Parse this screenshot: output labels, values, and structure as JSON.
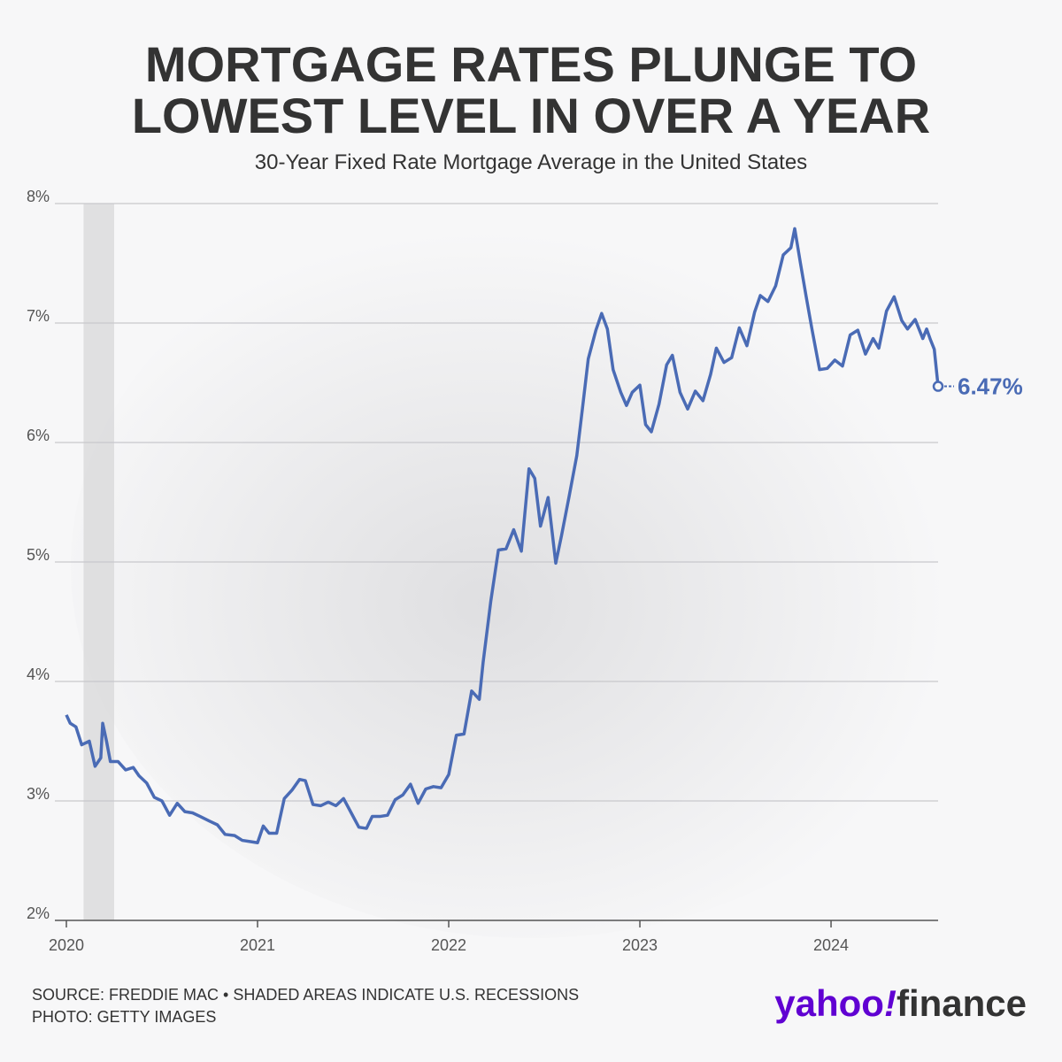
{
  "chart_data": {
    "type": "line",
    "title": [
      "MORTGAGE RATES PLUNGE TO",
      "LOWEST LEVEL IN OVER A YEAR"
    ],
    "subtitle": "30-Year Fixed Rate Mortgage Average in the United States",
    "x": [
      2020.0,
      2020.02,
      2020.05,
      2020.08,
      2020.12,
      2020.15,
      2020.18,
      2020.19,
      2020.21,
      2020.23,
      2020.27,
      2020.31,
      2020.35,
      2020.38,
      2020.42,
      2020.46,
      2020.5,
      2020.54,
      2020.58,
      2020.62,
      2020.66,
      2020.7,
      2020.75,
      2020.79,
      2020.83,
      2020.88,
      2020.92,
      2020.96,
      2021.0,
      2021.03,
      2021.06,
      2021.1,
      2021.14,
      2021.18,
      2021.22,
      2021.25,
      2021.29,
      2021.33,
      2021.37,
      2021.41,
      2021.45,
      2021.49,
      2021.53,
      2021.57,
      2021.6,
      2021.64,
      2021.68,
      2021.72,
      2021.76,
      2021.8,
      2021.84,
      2021.88,
      2021.92,
      2021.96,
      2022.0,
      2022.04,
      2022.08,
      2022.12,
      2022.16,
      2022.18,
      2022.22,
      2022.26,
      2022.3,
      2022.34,
      2022.38,
      2022.42,
      2022.45,
      2022.48,
      2022.52,
      2022.56,
      2022.59,
      2022.63,
      2022.67,
      2022.7,
      2022.73,
      2022.77,
      2022.8,
      2022.83,
      2022.86,
      2022.9,
      2022.93,
      2022.96,
      2023.0,
      2023.03,
      2023.06,
      2023.1,
      2023.14,
      2023.17,
      2023.21,
      2023.25,
      2023.29,
      2023.33,
      2023.37,
      2023.4,
      2023.44,
      2023.48,
      2023.52,
      2023.56,
      2023.6,
      2023.63,
      2023.67,
      2023.71,
      2023.75,
      2023.79,
      2023.81,
      2023.84,
      2023.87,
      2023.9,
      2023.94,
      2023.98,
      2024.02,
      2024.06,
      2024.1,
      2024.14,
      2024.18,
      2024.22,
      2024.25,
      2024.29,
      2024.33,
      2024.37,
      2024.4,
      2024.44,
      2024.48,
      2024.5,
      2024.52,
      2024.54,
      2024.56
    ],
    "series": [
      {
        "name": "30-Year Fixed Rate",
        "color": "#4a6bb5",
        "values": [
          3.72,
          3.65,
          3.62,
          3.47,
          3.5,
          3.29,
          3.36,
          3.65,
          3.5,
          3.33,
          3.33,
          3.26,
          3.28,
          3.21,
          3.15,
          3.03,
          3.0,
          2.88,
          2.98,
          2.91,
          2.9,
          2.87,
          2.83,
          2.8,
          2.72,
          2.71,
          2.67,
          2.66,
          2.65,
          2.79,
          2.73,
          2.73,
          3.02,
          3.09,
          3.18,
          3.17,
          2.97,
          2.96,
          2.99,
          2.96,
          3.02,
          2.9,
          2.78,
          2.77,
          2.87,
          2.87,
          2.88,
          3.01,
          3.05,
          3.14,
          2.98,
          3.1,
          3.12,
          3.11,
          3.22,
          3.55,
          3.56,
          3.92,
          3.85,
          4.16,
          4.67,
          5.1,
          5.11,
          5.27,
          5.09,
          5.78,
          5.7,
          5.3,
          5.54,
          4.99,
          5.22,
          5.55,
          5.89,
          6.29,
          6.7,
          6.94,
          7.08,
          6.95,
          6.61,
          6.42,
          6.31,
          6.42,
          6.48,
          6.15,
          6.09,
          6.32,
          6.65,
          6.73,
          6.42,
          6.28,
          6.43,
          6.35,
          6.57,
          6.79,
          6.67,
          6.71,
          6.96,
          6.81,
          7.09,
          7.23,
          7.18,
          7.31,
          7.57,
          7.63,
          7.79,
          7.5,
          7.22,
          6.95,
          6.61,
          6.62,
          6.69,
          6.64,
          6.9,
          6.94,
          6.74,
          6.87,
          6.79,
          7.1,
          7.22,
          7.02,
          6.95,
          7.03,
          6.87,
          6.95,
          6.86,
          6.78,
          6.47
        ]
      }
    ],
    "last_value_label": "6.47%",
    "recession": [
      2020.09,
      2020.25
    ],
    "xlim": [
      2020,
      2024.56
    ],
    "xticks": [
      2020,
      2021,
      2022,
      2023,
      2024
    ],
    "ylim": [
      2,
      8
    ],
    "yticks": [
      {
        "value": 2,
        "label": "2%"
      },
      {
        "value": 3,
        "label": "3%"
      },
      {
        "value": 4,
        "label": "4%"
      },
      {
        "value": 5,
        "label": "5%"
      },
      {
        "value": 6,
        "label": "6%"
      },
      {
        "value": 7,
        "label": "7%"
      },
      {
        "value": 8,
        "label": "8%"
      }
    ],
    "grid": true,
    "source": "SOURCE: FREDDIE MAC • SHADED AREAS INDICATE U.S. RECESSIONS",
    "photo": "PHOTO: GETTY IMAGES",
    "logo": [
      "yahoo",
      "!",
      "finance"
    ]
  }
}
